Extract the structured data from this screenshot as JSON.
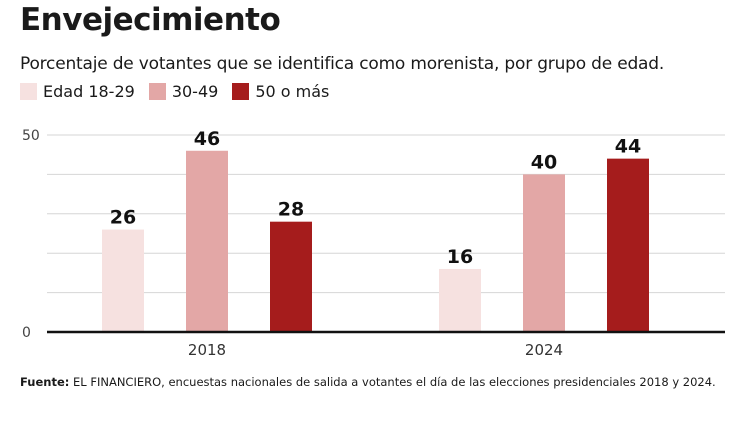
{
  "title": "Envejecimiento",
  "subtitle": "Porcentaje de votantes que se identifica como morenista, por grupo de edad.",
  "source": {
    "label": "Fuente:",
    "text": "EL FINANCIERO, encuestas nacionales de salida a votantes el día de las elecciones presidenciales 2018 y 2024."
  },
  "chart_data": {
    "type": "bar",
    "categories": [
      "2018",
      "2024"
    ],
    "series": [
      {
        "name": "Edad 18-29",
        "color": "#f6e1e0",
        "values": [
          26,
          16
        ]
      },
      {
        "name": "30-49",
        "color": "#e3a7a6",
        "values": [
          46,
          40
        ]
      },
      {
        "name": "50 o más",
        "color": "#a51c1c",
        "values": [
          28,
          44
        ]
      }
    ],
    "y_tick_labels": [
      "0",
      "50"
    ],
    "ylim": [
      0,
      50
    ],
    "grid": true,
    "legend": "top-left"
  }
}
